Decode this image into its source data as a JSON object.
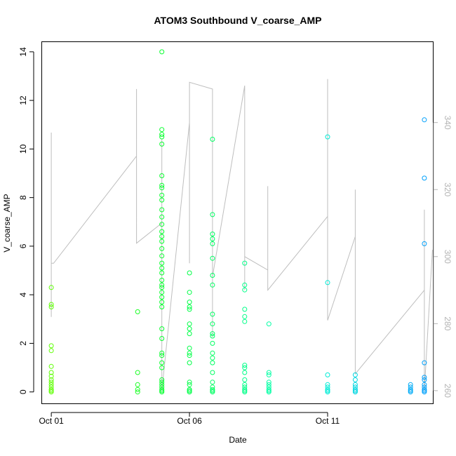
{
  "chart_data": {
    "type": "scatter",
    "title": "ATOM3 Southbound V_coarse_AMP",
    "xlabel": "Date",
    "ylabel": "V_coarse_AMP",
    "x_axis": {
      "type": "date",
      "range": [
        "2023-09-30T16:00",
        "2023-10-14T20:00"
      ],
      "ticks": [
        {
          "date": "2023-10-01",
          "label": "Oct 01"
        },
        {
          "date": "2023-10-06",
          "label": "Oct 06"
        },
        {
          "date": "2023-10-11",
          "label": "Oct 11"
        }
      ]
    },
    "ylim": [
      -0.5,
      14.4
    ],
    "yticks": [
      0,
      2,
      4,
      6,
      8,
      10,
      12,
      14
    ],
    "y2lim": [
      256,
      364
    ],
    "y2ticks": [
      260,
      280,
      300,
      320,
      340
    ],
    "grid": false,
    "colors": {
      "secondary_line": "#bebebe",
      "right_axis": "#b3b3b3",
      "gradient": [
        "#66ff00",
        "#00ff33",
        "#00ffcc",
        "#0099ff"
      ]
    },
    "series": [
      {
        "kind": "points",
        "axis": "left",
        "points": [
          [
            "2023-10-01T00:00",
            0.0
          ],
          [
            "2023-10-01T00:00",
            0.05
          ],
          [
            "2023-10-01T00:00",
            0.1
          ],
          [
            "2023-10-01T00:00",
            0.2
          ],
          [
            "2023-10-01T00:00",
            0.3
          ],
          [
            "2023-10-01T00:00",
            0.4
          ],
          [
            "2023-10-01T00:00",
            0.5
          ],
          [
            "2023-10-01T00:00",
            0.65
          ],
          [
            "2023-10-01T00:00",
            0.8
          ],
          [
            "2023-10-01T00:00",
            1.05
          ],
          [
            "2023-10-01T00:00",
            1.7
          ],
          [
            "2023-10-01T00:00",
            1.9
          ],
          [
            "2023-10-01T00:00",
            3.5
          ],
          [
            "2023-10-01T00:00",
            3.6
          ],
          [
            "2023-10-01T00:00",
            4.3
          ],
          [
            "2023-10-04T03:00",
            0.0
          ],
          [
            "2023-10-04T03:00",
            0.1
          ],
          [
            "2023-10-04T03:00",
            0.3
          ],
          [
            "2023-10-04T03:00",
            0.8
          ],
          [
            "2023-10-04T03:00",
            3.3
          ],
          [
            "2023-10-05T00:00",
            14.0
          ],
          [
            "2023-10-05T00:00",
            10.8
          ],
          [
            "2023-10-05T00:00",
            10.6
          ],
          [
            "2023-10-05T00:00",
            10.5
          ],
          [
            "2023-10-05T00:00",
            10.2
          ],
          [
            "2023-10-05T00:00",
            8.9
          ],
          [
            "2023-10-05T00:00",
            8.5
          ],
          [
            "2023-10-05T00:00",
            8.4
          ],
          [
            "2023-10-05T00:00",
            8.1
          ],
          [
            "2023-10-05T00:00",
            7.9
          ],
          [
            "2023-10-05T00:00",
            7.5
          ],
          [
            "2023-10-05T00:00",
            7.2
          ],
          [
            "2023-10-05T00:00",
            6.9
          ],
          [
            "2023-10-05T00:00",
            6.6
          ],
          [
            "2023-10-05T00:00",
            6.4
          ],
          [
            "2023-10-05T00:00",
            6.2
          ],
          [
            "2023-10-05T00:00",
            5.9
          ],
          [
            "2023-10-05T00:00",
            5.6
          ],
          [
            "2023-10-05T00:00",
            5.3
          ],
          [
            "2023-10-05T00:00",
            5.1
          ],
          [
            "2023-10-05T00:00",
            4.9
          ],
          [
            "2023-10-05T00:00",
            4.6
          ],
          [
            "2023-10-05T00:00",
            4.4
          ],
          [
            "2023-10-05T00:00",
            4.3
          ],
          [
            "2023-10-05T00:00",
            4.1
          ],
          [
            "2023-10-05T00:00",
            3.9
          ],
          [
            "2023-10-05T00:00",
            3.7
          ],
          [
            "2023-10-05T00:00",
            3.5
          ],
          [
            "2023-10-05T00:00",
            2.6
          ],
          [
            "2023-10-05T00:00",
            2.2
          ],
          [
            "2023-10-05T00:00",
            1.6
          ],
          [
            "2023-10-05T00:00",
            1.5
          ],
          [
            "2023-10-05T00:00",
            1.2
          ],
          [
            "2023-10-05T00:00",
            1.0
          ],
          [
            "2023-10-05T00:00",
            0.5
          ],
          [
            "2023-10-05T00:00",
            0.4
          ],
          [
            "2023-10-05T00:00",
            0.3
          ],
          [
            "2023-10-05T00:00",
            0.2
          ],
          [
            "2023-10-05T00:00",
            0.1
          ],
          [
            "2023-10-05T00:00",
            0.05
          ],
          [
            "2023-10-05T00:00",
            0.0
          ],
          [
            "2023-10-06T00:00",
            4.9
          ],
          [
            "2023-10-06T00:00",
            4.1
          ],
          [
            "2023-10-06T00:00",
            3.7
          ],
          [
            "2023-10-06T00:00",
            3.5
          ],
          [
            "2023-10-06T00:00",
            3.4
          ],
          [
            "2023-10-06T00:00",
            2.8
          ],
          [
            "2023-10-06T00:00",
            2.6
          ],
          [
            "2023-10-06T00:00",
            2.4
          ],
          [
            "2023-10-06T00:00",
            1.8
          ],
          [
            "2023-10-06T00:00",
            1.6
          ],
          [
            "2023-10-06T00:00",
            1.5
          ],
          [
            "2023-10-06T00:00",
            1.2
          ],
          [
            "2023-10-06T00:00",
            0.4
          ],
          [
            "2023-10-06T00:00",
            0.3
          ],
          [
            "2023-10-06T00:00",
            0.1
          ],
          [
            "2023-10-06T00:00",
            0.05
          ],
          [
            "2023-10-06T00:00",
            0.0
          ],
          [
            "2023-10-06T20:00",
            10.4
          ],
          [
            "2023-10-06T20:00",
            7.3
          ],
          [
            "2023-10-06T20:00",
            6.5
          ],
          [
            "2023-10-06T20:00",
            6.3
          ],
          [
            "2023-10-06T20:00",
            6.1
          ],
          [
            "2023-10-06T20:00",
            5.5
          ],
          [
            "2023-10-06T20:00",
            4.8
          ],
          [
            "2023-10-06T20:00",
            4.4
          ],
          [
            "2023-10-06T20:00",
            3.2
          ],
          [
            "2023-10-06T20:00",
            2.8
          ],
          [
            "2023-10-06T20:00",
            2.4
          ],
          [
            "2023-10-06T20:00",
            2.3
          ],
          [
            "2023-10-06T20:00",
            2.0
          ],
          [
            "2023-10-06T20:00",
            1.6
          ],
          [
            "2023-10-06T20:00",
            1.4
          ],
          [
            "2023-10-06T20:00",
            1.2
          ],
          [
            "2023-10-06T20:00",
            0.8
          ],
          [
            "2023-10-06T20:00",
            0.4
          ],
          [
            "2023-10-06T20:00",
            0.2
          ],
          [
            "2023-10-06T20:00",
            0.1
          ],
          [
            "2023-10-06T20:00",
            0.05
          ],
          [
            "2023-10-06T20:00",
            0.0
          ],
          [
            "2023-10-08T00:00",
            5.3
          ],
          [
            "2023-10-08T00:00",
            4.4
          ],
          [
            "2023-10-08T00:00",
            4.2
          ],
          [
            "2023-10-08T00:00",
            3.4
          ],
          [
            "2023-10-08T00:00",
            3.1
          ],
          [
            "2023-10-08T00:00",
            2.9
          ],
          [
            "2023-10-08T00:00",
            1.1
          ],
          [
            "2023-10-08T00:00",
            1.0
          ],
          [
            "2023-10-08T00:00",
            0.8
          ],
          [
            "2023-10-08T00:00",
            0.5
          ],
          [
            "2023-10-08T00:00",
            0.3
          ],
          [
            "2023-10-08T00:00",
            0.2
          ],
          [
            "2023-10-08T00:00",
            0.1
          ],
          [
            "2023-10-08T00:00",
            0.05
          ],
          [
            "2023-10-08T00:00",
            0.0
          ],
          [
            "2023-10-08T21:00",
            2.8
          ],
          [
            "2023-10-08T21:00",
            0.8
          ],
          [
            "2023-10-08T21:00",
            0.7
          ],
          [
            "2023-10-08T21:00",
            0.4
          ],
          [
            "2023-10-08T21:00",
            0.3
          ],
          [
            "2023-10-08T21:00",
            0.2
          ],
          [
            "2023-10-08T21:00",
            0.1
          ],
          [
            "2023-10-08T21:00",
            0.05
          ],
          [
            "2023-10-08T21:00",
            0.0
          ],
          [
            "2023-10-11T00:00",
            10.5
          ],
          [
            "2023-10-11T00:00",
            4.5
          ],
          [
            "2023-10-11T00:00",
            0.7
          ],
          [
            "2023-10-11T00:00",
            0.3
          ],
          [
            "2023-10-11T00:00",
            0.2
          ],
          [
            "2023-10-11T00:00",
            0.1
          ],
          [
            "2023-10-11T00:00",
            0.05
          ],
          [
            "2023-10-11T00:00",
            0.0
          ],
          [
            "2023-10-12T00:00",
            0.7
          ],
          [
            "2023-10-12T00:00",
            0.5
          ],
          [
            "2023-10-12T00:00",
            0.3
          ],
          [
            "2023-10-12T00:00",
            0.2
          ],
          [
            "2023-10-12T00:00",
            0.1
          ],
          [
            "2023-10-12T00:00",
            0.05
          ],
          [
            "2023-10-12T00:00",
            0.0
          ],
          [
            "2023-10-14T00:00",
            0.3
          ],
          [
            "2023-10-14T00:00",
            0.2
          ],
          [
            "2023-10-14T00:00",
            0.1
          ],
          [
            "2023-10-14T00:00",
            0.05
          ],
          [
            "2023-10-14T00:00",
            0.0
          ],
          [
            "2023-10-14T12:00",
            11.2
          ],
          [
            "2023-10-14T12:00",
            8.8
          ],
          [
            "2023-10-14T12:00",
            6.1
          ],
          [
            "2023-10-14T12:00",
            1.2
          ],
          [
            "2023-10-14T12:00",
            0.6
          ],
          [
            "2023-10-14T12:00",
            0.5
          ],
          [
            "2023-10-14T12:00",
            0.3
          ],
          [
            "2023-10-14T12:00",
            0.2
          ],
          [
            "2023-10-14T12:00",
            0.1
          ],
          [
            "2023-10-14T12:00",
            0.05
          ],
          [
            "2023-10-14T12:00",
            0.0
          ]
        ]
      },
      {
        "kind": "line",
        "axis": "right",
        "points": [
          [
            "2023-10-01T00:00",
            282
          ],
          [
            "2023-10-01T00:00",
            337
          ],
          [
            "2023-10-01T00:00",
            298
          ],
          [
            "2023-10-01T02:00",
            298
          ],
          [
            "2023-10-04T02:00",
            330
          ],
          [
            "2023-10-04T02:00",
            350
          ],
          [
            "2023-10-04T02:00",
            304
          ],
          [
            "2023-10-05T00:00",
            310
          ],
          [
            "2023-10-05T00:00",
            335
          ],
          [
            "2023-10-05T00:00",
            260
          ],
          [
            "2023-10-06T00:00",
            340
          ],
          [
            "2023-10-06T00:00",
            298
          ],
          [
            "2023-10-06T00:00",
            352
          ],
          [
            "2023-10-06T20:00",
            350
          ],
          [
            "2023-10-06T20:00",
            276
          ],
          [
            "2023-10-06T20:00",
            294
          ],
          [
            "2023-10-08T00:00",
            351
          ],
          [
            "2023-10-08T00:00",
            290
          ],
          [
            "2023-10-08T00:00",
            300
          ],
          [
            "2023-10-08T20:00",
            296
          ],
          [
            "2023-10-08T20:00",
            321
          ],
          [
            "2023-10-08T20:00",
            290
          ],
          [
            "2023-10-11T00:00",
            312
          ],
          [
            "2023-10-11T00:00",
            353
          ],
          [
            "2023-10-11T00:00",
            281
          ],
          [
            "2023-10-12T00:00",
            306
          ],
          [
            "2023-10-12T00:00",
            320
          ],
          [
            "2023-10-12T00:00",
            265
          ],
          [
            "2023-10-14T12:00",
            290
          ],
          [
            "2023-10-14T12:00",
            314
          ],
          [
            "2023-10-14T12:00",
            260
          ],
          [
            "2023-10-14T19:00",
            302
          ]
        ]
      }
    ]
  }
}
